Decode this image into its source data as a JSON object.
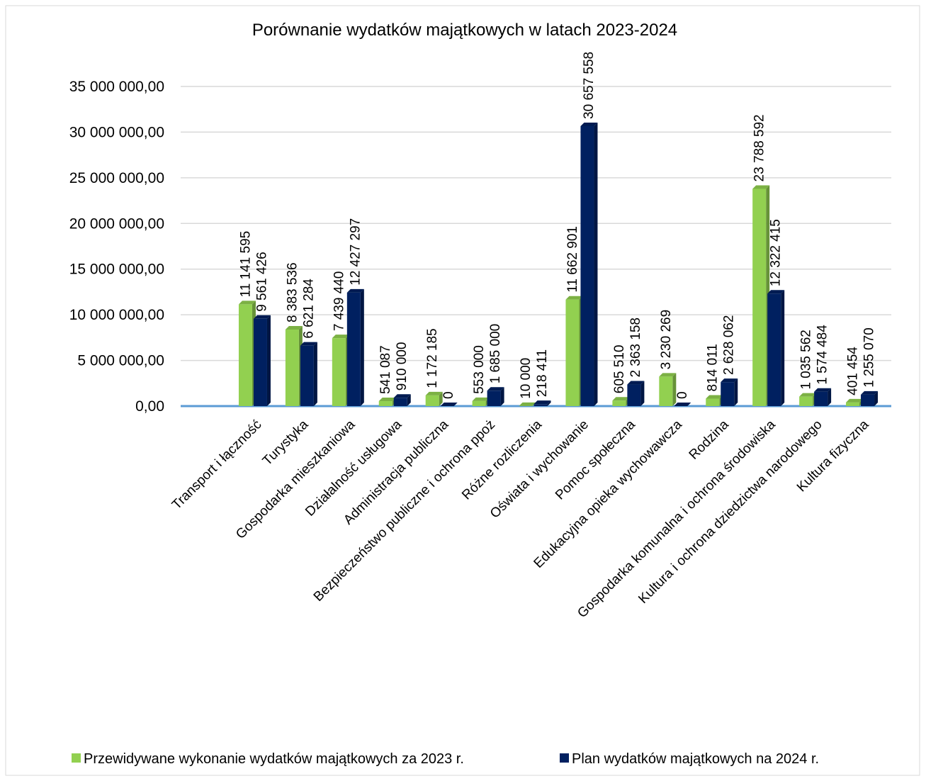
{
  "chart_data": {
    "type": "bar",
    "title": "Porównanie wydatków majątkowych w latach 2023-2024",
    "categories": [
      "Transport i łączność",
      "Turystyka",
      "Gospodarka mieszkaniowa",
      "Działalność usługowa",
      "Administracja publiczna",
      "Bezpieczeństwo publiczne i ochrona ppoż",
      "Różne rozliczenia",
      "Oświata i wychowanie",
      "Pomoc społeczna",
      "Edukacyjna opieka wychowawcza",
      "Rodzina",
      "Gospodarka komunalna i ochrona środowiska",
      "Kultura i ochrona dziedzictwa narodowego",
      "Kultura fizyczna"
    ],
    "series": [
      {
        "name": "Przewidywane wykonanie wydatków majątkowych za 2023 r.",
        "color": "#92d050",
        "values": [
          11141595,
          8383536,
          7439440,
          541087,
          1172185,
          553000,
          10000,
          11662901,
          605510,
          3230269,
          814011,
          23788592,
          1035562,
          401454
        ],
        "value_labels": [
          "11 141 595",
          "8 383 536",
          "7 439 440",
          "541 087",
          "1 172 185",
          "553 000",
          "10 000",
          "11 662 901",
          "605 510",
          "3 230 269",
          "814 011",
          "23 788 592",
          "1 035 562",
          "401 454"
        ]
      },
      {
        "name": "Plan wydatków majątkowych na 2024 r.",
        "color": "#002060",
        "values": [
          9561426,
          6621284,
          12427297,
          910000,
          0,
          1685000,
          218411,
          30657558,
          2363158,
          0,
          2628062,
          12322415,
          1574484,
          1255070
        ],
        "value_labels": [
          "9 561 426",
          "6 621 284",
          "12 427 297",
          "910 000",
          "0",
          "1 685 000",
          "218 411",
          "30 657 558",
          "2 363 158",
          "0",
          "2 628 062",
          "12 322 415",
          "1 574 484",
          "1 255 070"
        ]
      }
    ],
    "ylim": [
      0,
      35000000
    ],
    "yticks": [
      {
        "value": 0,
        "label": "0,00"
      },
      {
        "value": 5000000,
        "label": "5 000 000,00"
      },
      {
        "value": 10000000,
        "label": "10 000 000,00"
      },
      {
        "value": 15000000,
        "label": "15 000 000,00"
      },
      {
        "value": 20000000,
        "label": "20 000 000,00"
      },
      {
        "value": 25000000,
        "label": "25 000 000,00"
      },
      {
        "value": 30000000,
        "label": "30 000 000,00"
      },
      {
        "value": 35000000,
        "label": "35 000 000,00"
      }
    ],
    "grid": true,
    "legend": "bottom"
  }
}
